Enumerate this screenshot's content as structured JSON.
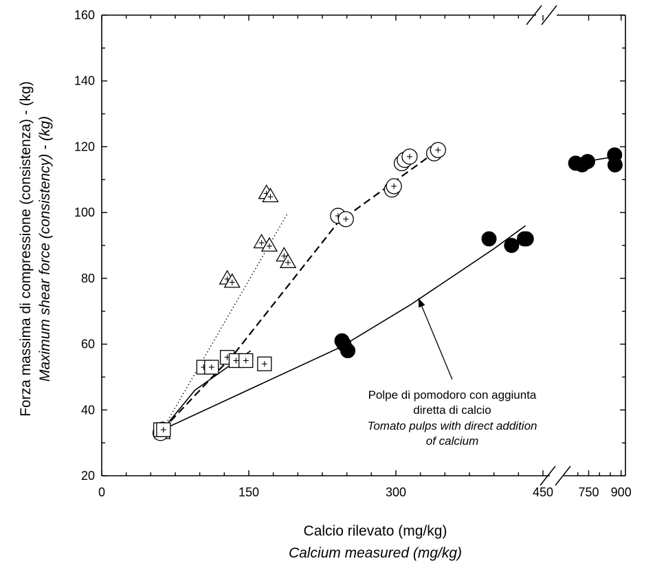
{
  "chart_data": {
    "type": "scatter",
    "title": "",
    "xlabel": "Calcio rilevato (mg/kg)",
    "xlabel_en": "Calcium measured (mg/kg)",
    "ylabel": "Forza massima di compressione (consistenza) - (kg)",
    "ylabel_en": "Maximum shear force (consistency) - (kg)",
    "ylim": [
      20,
      160
    ],
    "xlim": [
      0,
      450
    ],
    "x_break": {
      "after": 450,
      "upper_segment_ticks": [
        750,
        900
      ],
      "upper_range": [
        650,
        920
      ]
    },
    "x_ticks": [
      "0",
      "150",
      "300",
      "450",
      "750",
      "900"
    ],
    "y_ticks": [
      "20",
      "40",
      "60",
      "80",
      "100",
      "120",
      "140",
      "160"
    ],
    "grid": false,
    "series": [
      {
        "marker": "triangle",
        "points": [
          [
            62,
            34
          ],
          [
            62,
            33
          ],
          [
            128,
            80
          ],
          [
            133,
            79
          ],
          [
            168,
            106
          ],
          [
            172,
            105
          ],
          [
            163,
            91
          ],
          [
            171,
            90
          ],
          [
            186,
            87
          ],
          [
            190,
            85
          ]
        ],
        "trend": {
          "style": "dotted",
          "points": [
            [
              62,
              34
            ],
            [
              190,
              100
            ]
          ]
        }
      },
      {
        "marker": "circle",
        "points": [
          [
            62,
            34
          ],
          [
            60,
            33
          ],
          [
            241,
            99
          ],
          [
            249,
            98
          ],
          [
            296,
            107
          ],
          [
            298,
            108
          ],
          [
            306,
            115
          ],
          [
            309,
            116
          ],
          [
            314,
            117
          ],
          [
            339,
            118
          ],
          [
            343,
            119
          ]
        ],
        "trend": {
          "style": "dashed",
          "points": [
            [
              62,
              34
            ],
            [
              135,
              57
            ],
            [
              241,
              97
            ],
            [
              343,
              119
            ]
          ]
        }
      },
      {
        "marker": "square",
        "points": [
          [
            60,
            34
          ],
          [
            63,
            34
          ],
          [
            104,
            53
          ],
          [
            112,
            53
          ],
          [
            128,
            56
          ],
          [
            137,
            55
          ],
          [
            147,
            55
          ],
          [
            166,
            54
          ]
        ],
        "trend": {
          "style": "solid",
          "points": [
            [
              62,
              34
            ],
            [
              95,
              46
            ],
            [
              152,
              58
            ]
          ]
        }
      },
      {
        "marker": "filled-circle",
        "points": [
          [
            245,
            61
          ],
          [
            247,
            60
          ],
          [
            251,
            58
          ],
          [
            395,
            92
          ],
          [
            418,
            90
          ],
          [
            433,
            92
          ],
          [
            453,
            92
          ],
          [
            690,
            115
          ],
          [
            720,
            114.5
          ],
          [
            745,
            115.5
          ],
          [
            870,
            117.5
          ],
          [
            872,
            114.5
          ]
        ],
        "trend": {
          "style": "solid",
          "points": [
            [
              62,
              34
            ],
            [
              243,
              59
            ],
            [
              315,
              72
            ],
            [
              400,
              89
            ],
            [
              458,
              96
            ]
          ],
          "upper_points": [
            [
              690,
              115
            ],
            [
              870,
              117
            ]
          ]
        }
      }
    ],
    "annotations": [
      {
        "lines": [
          "Polpe di pomodoro con aggiunta",
          "diretta di calcio"
        ],
        "lines_en": [
          "Tomato pulps with direct addition",
          "of calcium"
        ],
        "arrow_to": [
          323,
          74
        ]
      }
    ]
  }
}
